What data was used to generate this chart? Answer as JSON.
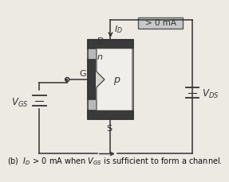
{
  "bg_color": "#ede9e3",
  "title_text": "(b)  $I_D$ > 0 mA when $V_{GS}$ is sufficient to form a channel.",
  "box_label": "> 0 mA",
  "drain_label": "D",
  "source_label": "S",
  "gate_label": "G",
  "id_label": "$I_D$",
  "vgs_label": "$V_{GS}$",
  "vds_label": "$V_{DS}$",
  "n_label": "n",
  "p_label": "p",
  "body_gray": "#b8b8b8",
  "body_light": "#d8d4ce",
  "dark_contact": "#3a3a3a",
  "gate_dark": "#3a3a3a",
  "channel_white": "#f0eeea",
  "line_color": "#333333",
  "box_bg": "#c8c8c8",
  "box_border": "#555555"
}
